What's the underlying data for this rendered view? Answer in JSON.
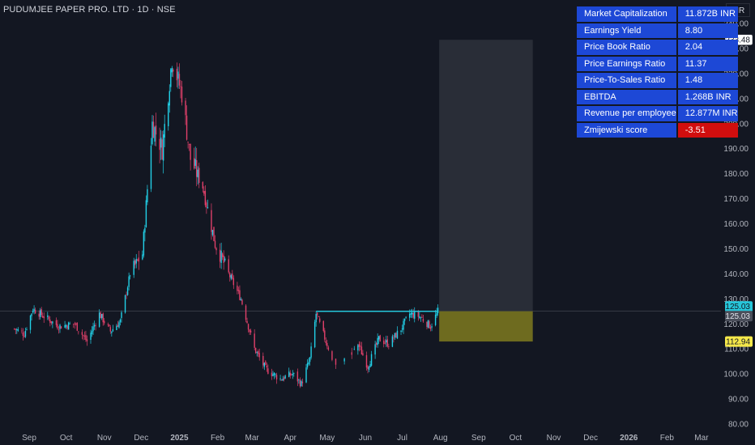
{
  "header": {
    "title": "PUDUMJEE PAPER PRO. LTD · 1D · NSE",
    "currency": "INR"
  },
  "fundamentals": [
    {
      "label": "Market Capitalization",
      "value": "11.872B  INR",
      "negative": false
    },
    {
      "label": "Earnings Yield",
      "value": "8.80",
      "negative": false
    },
    {
      "label": "Price Book Ratio",
      "value": "2.04",
      "negative": false
    },
    {
      "label": "Price Earnings Ratio",
      "value": "11.37",
      "negative": false
    },
    {
      "label": "Price-To-Sales Ratio",
      "value": "1.48",
      "negative": false
    },
    {
      "label": "EBITDA",
      "value": "1.268B  INR",
      "negative": false
    },
    {
      "label": "Revenue per employee",
      "value": "12.877M  INR",
      "negative": false
    },
    {
      "label": "Zmijewski score",
      "value": "-3.51",
      "negative": true
    }
  ],
  "colors": {
    "background": "#131722",
    "up": "#22d1e8",
    "down": "#e0406a",
    "label_blue": "#1d48d6",
    "label_red": "#d10e0e",
    "target_zone": "#2a2e39",
    "risk_zone": "#7f7a1e",
    "horizontal_line": "#26c6da"
  },
  "chart_data": {
    "type": "candlestick",
    "y_ticks": [
      "80.00",
      "90.00",
      "100.00",
      "110.00",
      "120.00",
      "130.00",
      "140.00",
      "150.00",
      "160.00",
      "170.00",
      "180.00",
      "190.00",
      "200.00",
      "210.00",
      "220.00",
      "230.00",
      "240.00"
    ],
    "ylim": [
      78,
      243
    ],
    "x_ticks": [
      "Sep",
      "Oct",
      "Nov",
      "Dec",
      "2025",
      "Feb",
      "Mar",
      "Apr",
      "May",
      "Jun",
      "Jul",
      "Aug",
      "Sep",
      "Oct",
      "Nov",
      "Dec",
      "2026",
      "Feb",
      "Mar"
    ],
    "price_labels": [
      {
        "value": 233.48,
        "text": "233.48",
        "style": "white"
      },
      {
        "value": 125.03,
        "text": "125.03",
        "style": "cyan"
      },
      {
        "value": 125.03,
        "text": "125.03",
        "style": "gray"
      },
      {
        "value": 112.94,
        "text": "112.94",
        "style": "yellow"
      }
    ],
    "horizontal_line": {
      "value": 125.03,
      "from": "2025-04-22",
      "to": "2025-07-30"
    },
    "position_tool": {
      "from": "2025-07-31",
      "to": "2025-10-15",
      "entry": 125.03,
      "target": 233.48,
      "stop": 112.94
    },
    "series": [
      {
        "date": "2024-08-20",
        "close": 118
      },
      {
        "date": "2024-08-28",
        "close": 116
      },
      {
        "date": "2024-09-04",
        "close": 126
      },
      {
        "date": "2024-09-16",
        "close": 122
      },
      {
        "date": "2024-09-25",
        "close": 119
      },
      {
        "date": "2024-10-08",
        "close": 120
      },
      {
        "date": "2024-10-18",
        "close": 113
      },
      {
        "date": "2024-10-28",
        "close": 124
      },
      {
        "date": "2024-11-06",
        "close": 117
      },
      {
        "date": "2024-11-14",
        "close": 121
      },
      {
        "date": "2024-11-22",
        "close": 140
      },
      {
        "date": "2024-12-02",
        "close": 148
      },
      {
        "date": "2024-12-10",
        "close": 200
      },
      {
        "date": "2024-12-18",
        "close": 190
      },
      {
        "date": "2024-12-26",
        "close": 226
      },
      {
        "date": "2025-01-03",
        "close": 212
      },
      {
        "date": "2025-01-10",
        "close": 186
      },
      {
        "date": "2025-01-20",
        "close": 175
      },
      {
        "date": "2025-01-30",
        "close": 152
      },
      {
        "date": "2025-02-10",
        "close": 140
      },
      {
        "date": "2025-02-20",
        "close": 130
      },
      {
        "date": "2025-03-03",
        "close": 110
      },
      {
        "date": "2025-03-12",
        "close": 102
      },
      {
        "date": "2025-03-24",
        "close": 98
      },
      {
        "date": "2025-04-03",
        "close": 100
      },
      {
        "date": "2025-04-10",
        "close": 96
      },
      {
        "date": "2025-04-17",
        "close": 106
      },
      {
        "date": "2025-04-22",
        "close": 124
      },
      {
        "date": "2025-04-30",
        "close": 113
      },
      {
        "date": "2025-05-08",
        "close": 103
      },
      {
        "date": "2025-05-16",
        "close": 106
      },
      {
        "date": "2025-05-26",
        "close": 112
      },
      {
        "date": "2025-06-03",
        "close": 103
      },
      {
        "date": "2025-06-12",
        "close": 114
      },
      {
        "date": "2025-06-20",
        "close": 112
      },
      {
        "date": "2025-06-30",
        "close": 118
      },
      {
        "date": "2025-07-07",
        "close": 124
      },
      {
        "date": "2025-07-15",
        "close": 123
      },
      {
        "date": "2025-07-24",
        "close": 119
      },
      {
        "date": "2025-07-30",
        "close": 125
      }
    ]
  }
}
